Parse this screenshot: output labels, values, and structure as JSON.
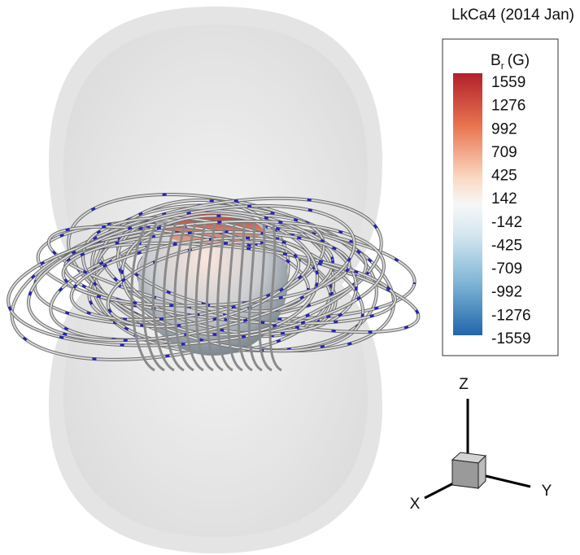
{
  "title": "LkCa4 (2014 Jan)",
  "colorbar": {
    "label_symbol": "B",
    "label_subscript": "r",
    "label_unit": "(G)",
    "ticks": [
      1559,
      1276,
      992,
      709,
      425,
      142,
      -142,
      -425,
      -709,
      -992,
      -1276,
      -1559
    ]
  },
  "axes": {
    "x": "X",
    "y": "Y",
    "z": "Z"
  }
}
